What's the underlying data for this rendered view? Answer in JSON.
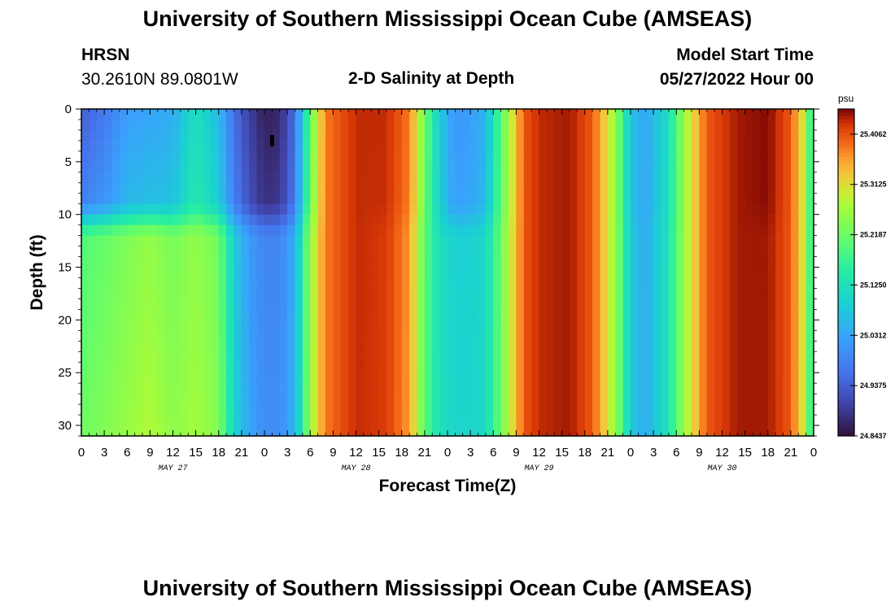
{
  "header": {
    "title": "University of Southern Mississippi Ocean Cube (AMSEAS)",
    "station": "HRSN",
    "coords": "30.2610N  89.0801W",
    "subtitle": "2-D Salinity at Depth",
    "start_label": "Model Start Time",
    "start_value": "05/27/2022 Hour 00"
  },
  "footer": {
    "title": "University of Southern Mississippi Ocean Cube (AMSEAS)"
  },
  "chart_data": {
    "type": "heatmap",
    "title": "2-D Salinity at Depth",
    "xlabel": "Forecast Time(Z)",
    "ylabel": "Depth (ft)",
    "x_ticks": [
      "0",
      "3",
      "6",
      "9",
      "12",
      "15",
      "18",
      "21",
      "0",
      "3",
      "6",
      "9",
      "12",
      "15",
      "18",
      "21",
      "0",
      "3",
      "6",
      "9",
      "12",
      "15",
      "18",
      "21",
      "0",
      "3",
      "6",
      "9",
      "12",
      "15",
      "18",
      "21",
      "0"
    ],
    "day_labels": [
      "MAY 27",
      "MAY 28",
      "MAY 29",
      "MAY 30"
    ],
    "y_ticks": [
      "0",
      "5",
      "10",
      "15",
      "20",
      "25",
      "30"
    ],
    "xlim_hours": [
      0,
      96
    ],
    "ylim_ft": [
      0,
      31
    ],
    "colorbar": {
      "unit": "psu",
      "min": 24.8437,
      "max": 25.4531,
      "labels": [
        "25.4062",
        "25.3125",
        "25.2187",
        "25.1250",
        "25.0312",
        "24.9375",
        "24.8437"
      ],
      "label_values": [
        25.40625,
        25.3125,
        25.21875,
        25.125,
        25.03125,
        24.9375,
        24.84375
      ]
    },
    "salinity_surface_by_hour": [
      [
        0,
        24.94
      ],
      [
        3,
        24.97
      ],
      [
        6,
        25.02
      ],
      [
        9,
        25.03
      ],
      [
        12,
        25.04
      ],
      [
        15,
        25.12
      ],
      [
        18,
        25.06
      ],
      [
        20,
        24.96
      ],
      [
        22,
        24.9
      ],
      [
        24,
        24.86
      ],
      [
        26,
        24.87
      ],
      [
        28,
        24.96
      ],
      [
        30,
        25.21
      ],
      [
        32,
        25.38
      ],
      [
        36,
        25.43
      ],
      [
        40,
        25.43
      ],
      [
        43,
        25.38
      ],
      [
        45,
        25.22
      ],
      [
        47,
        25.08
      ],
      [
        49,
        25.01
      ],
      [
        51,
        25.02
      ],
      [
        53,
        25.05
      ],
      [
        55,
        25.2
      ],
      [
        58,
        25.4
      ],
      [
        60,
        25.43
      ],
      [
        64,
        25.44
      ],
      [
        67,
        25.4
      ],
      [
        70,
        25.26
      ],
      [
        72,
        25.07
      ],
      [
        74,
        25.03
      ],
      [
        77,
        25.12
      ],
      [
        79,
        25.26
      ],
      [
        82,
        25.4
      ],
      [
        86,
        25.44
      ],
      [
        90,
        25.45
      ],
      [
        93,
        25.4
      ],
      [
        95,
        25.28
      ],
      [
        96,
        25.1
      ]
    ],
    "salinity_bottom_by_hour": [
      [
        0,
        25.22
      ],
      [
        3,
        25.24
      ],
      [
        6,
        25.26
      ],
      [
        9,
        25.28
      ],
      [
        12,
        25.25
      ],
      [
        15,
        25.27
      ],
      [
        18,
        25.24
      ],
      [
        20,
        25.1
      ],
      [
        22,
        25.03
      ],
      [
        24,
        25.0
      ],
      [
        26,
        25.0
      ],
      [
        28,
        25.05
      ],
      [
        30,
        25.26
      ],
      [
        32,
        25.38
      ],
      [
        36,
        25.43
      ],
      [
        40,
        25.42
      ],
      [
        43,
        25.36
      ],
      [
        45,
        25.2
      ],
      [
        47,
        25.12
      ],
      [
        49,
        25.1
      ],
      [
        51,
        25.1
      ],
      [
        53,
        25.11
      ],
      [
        55,
        25.22
      ],
      [
        58,
        25.4
      ],
      [
        60,
        25.43
      ],
      [
        64,
        25.44
      ],
      [
        67,
        25.4
      ],
      [
        70,
        25.26
      ],
      [
        72,
        25.08
      ],
      [
        74,
        25.04
      ],
      [
        77,
        25.13
      ],
      [
        79,
        25.26
      ],
      [
        82,
        25.4
      ],
      [
        86,
        25.44
      ],
      [
        90,
        25.44
      ],
      [
        93,
        25.4
      ],
      [
        95,
        25.28
      ],
      [
        96,
        25.1
      ]
    ]
  }
}
